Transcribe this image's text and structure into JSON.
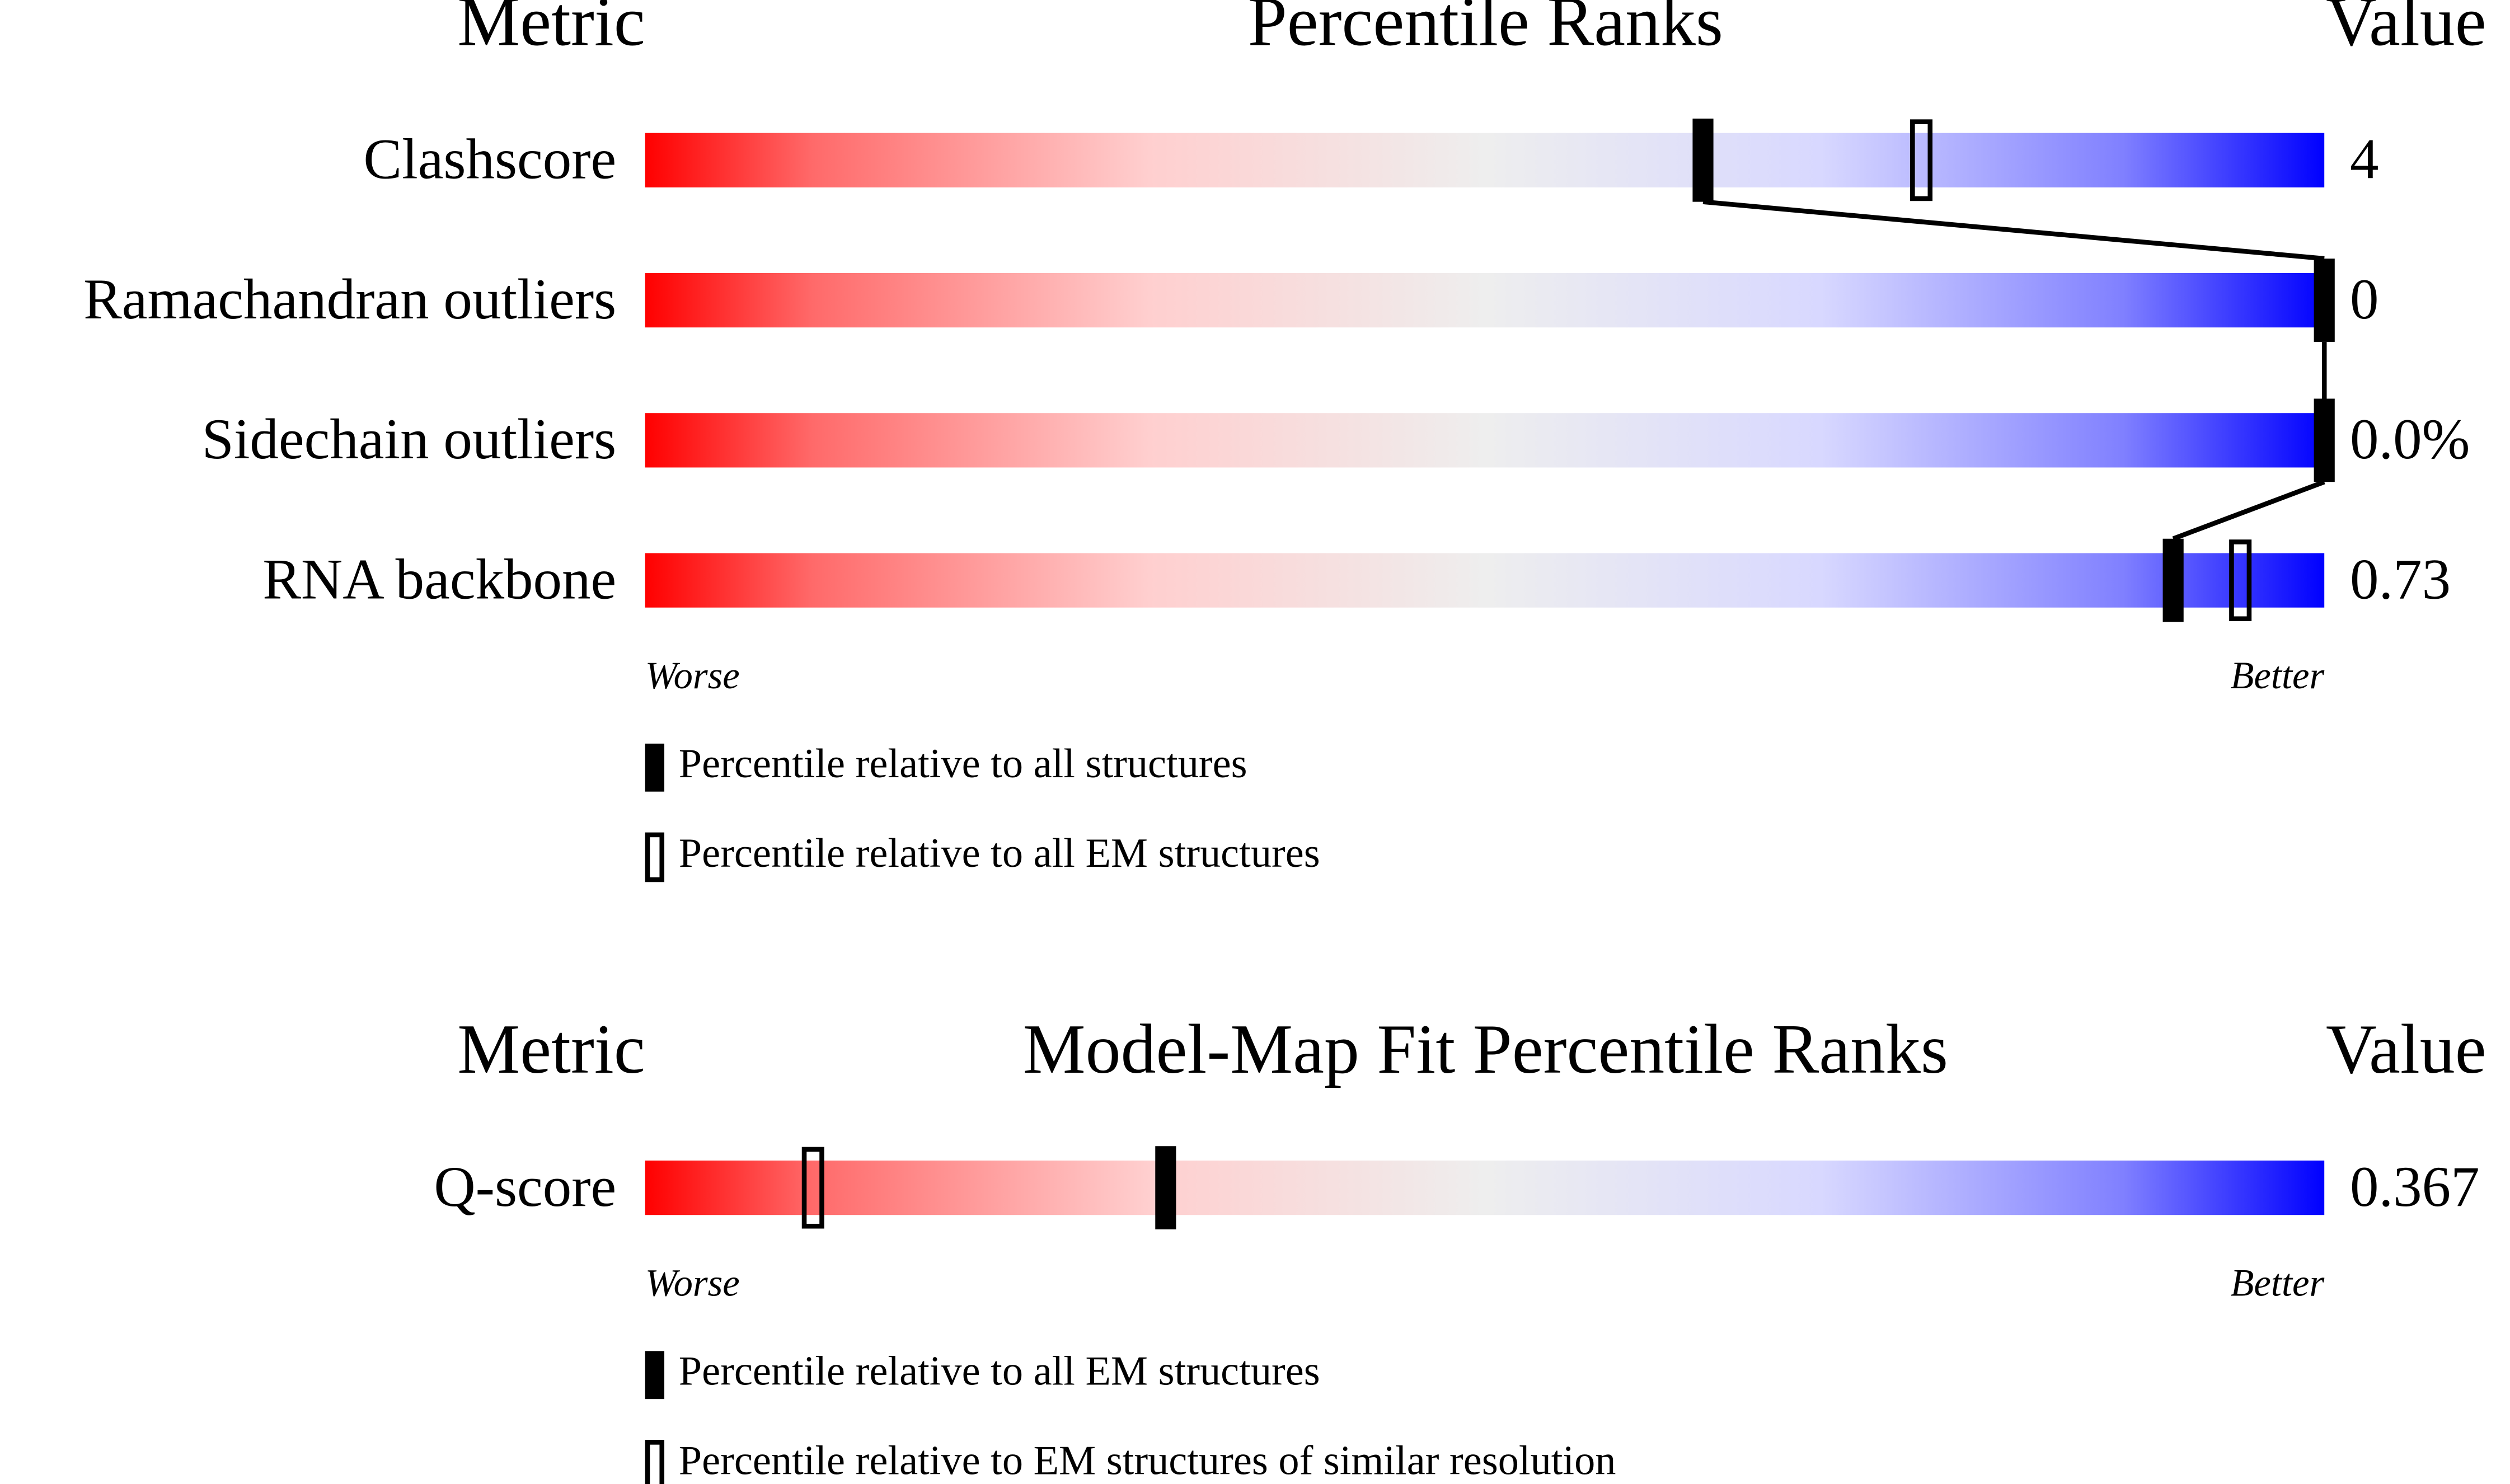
{
  "xlim": [
    0,
    100
  ],
  "panels": [
    {
      "headers": {
        "metric": "Metric",
        "title": "Percentile Ranks",
        "value": "Value"
      },
      "rows": [
        {
          "metric": "Clashscore",
          "value": "4",
          "filled": 63,
          "open": 76
        },
        {
          "metric": "Ramachandran outliers",
          "value": "0",
          "filled": 100,
          "open": null
        },
        {
          "metric": "Sidechain outliers",
          "value": "0.0%",
          "filled": 100,
          "open": null
        },
        {
          "metric": "RNA backbone",
          "value": "0.73",
          "filled": 91,
          "open": 95
        }
      ],
      "worse": "Worse",
      "better": "Better",
      "legend": {
        "filled": "Percentile relative to all structures",
        "open": "Percentile relative to all EM structures"
      }
    },
    {
      "headers": {
        "metric": "Metric",
        "title": "Model-Map Fit Percentile Ranks",
        "value": "Value"
      },
      "rows": [
        {
          "metric": "Q-score",
          "value": "0.367",
          "filled": 31,
          "open": 10
        }
      ],
      "worse": "Worse",
      "better": "Better",
      "legend": {
        "filled": "Percentile relative to all EM structures",
        "open": "Percentile relative to EM structures of similar resolution"
      }
    }
  ]
}
